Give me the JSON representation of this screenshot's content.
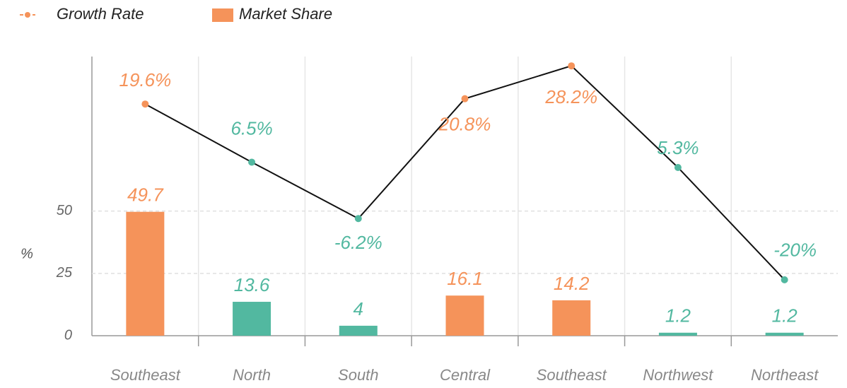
{
  "chart_data": {
    "type": "bar_line",
    "categories": [
      "Southeast",
      "North",
      "South",
      "Central",
      "Southeast",
      "Northwest",
      "Northeast"
    ],
    "series": [
      {
        "name": "Market Share",
        "type": "bar",
        "color": "#f5935a",
        "colors": [
          "#f5935a",
          "#52b8a0",
          "#52b8a0",
          "#f5935a",
          "#f5935a",
          "#52b8a0",
          "#52b8a0"
        ],
        "values": [
          49.7,
          13.6,
          4,
          16.1,
          14.2,
          1.2,
          1.2
        ]
      },
      {
        "name": "Growth Rate",
        "type": "line",
        "axis": "y2",
        "color": "#f5935a",
        "line_color": "#111111",
        "colors": [
          "#f5935a",
          "#52b8a0",
          "#52b8a0",
          "#f5935a",
          "#f5935a",
          "#52b8a0",
          "#52b8a0"
        ],
        "values": [
          19.6,
          6.5,
          -6.2,
          20.8,
          28.2,
          5.3,
          -20
        ],
        "value_labels": [
          "19.6%",
          "6.5%",
          "-6.2%",
          "20.8%",
          "28.2%",
          "5.3%",
          "-20%"
        ]
      }
    ],
    "y_label": "%",
    "ylim": [
      0,
      112
    ],
    "yticks": [
      0,
      25,
      50
    ],
    "y2lim": [
      -32.6,
      30.3
    ],
    "grid": true,
    "legend": "top-left"
  }
}
